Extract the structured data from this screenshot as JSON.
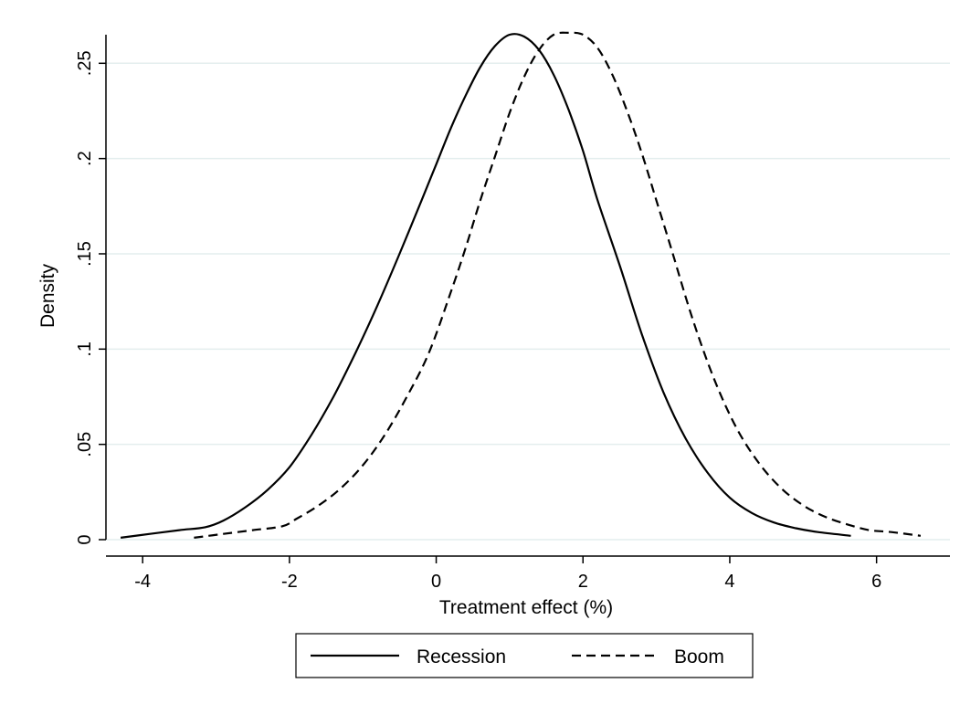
{
  "chart_data": {
    "type": "line",
    "xlabel": "Treatment effect (%)",
    "ylabel": "Density",
    "xlim": [
      -4.5,
      7.0
    ],
    "ylim": [
      0,
      0.265
    ],
    "x_ticks": [
      -4,
      -2,
      0,
      2,
      4,
      6
    ],
    "x_tick_labels": [
      "-4",
      "-2",
      "0",
      "2",
      "4",
      "6"
    ],
    "y_ticks": [
      0,
      0.05,
      0.1,
      0.15,
      0.2,
      0.25
    ],
    "y_tick_labels": [
      "0",
      ".05",
      ".1",
      ".15",
      ".2",
      ".25"
    ],
    "grid": true,
    "legend_position": "bottom",
    "series": [
      {
        "name": "Recession",
        "style": "solid",
        "x": [
          -4.3,
          -3.9,
          -3.5,
          -3.15,
          -2.9,
          -2.6,
          -2.3,
          -2.0,
          -1.7,
          -1.4,
          -1.1,
          -0.8,
          -0.5,
          -0.2,
          0.0,
          0.2,
          0.4,
          0.6,
          0.8,
          1.0,
          1.2,
          1.4,
          1.6,
          1.8,
          2.0,
          2.2,
          2.5,
          2.8,
          3.1,
          3.4,
          3.7,
          4.0,
          4.3,
          4.6,
          4.9,
          5.2,
          5.65
        ],
        "y": [
          0.001,
          0.003,
          0.005,
          0.0065,
          0.01,
          0.017,
          0.026,
          0.038,
          0.055,
          0.075,
          0.098,
          0.123,
          0.15,
          0.178,
          0.197,
          0.216,
          0.233,
          0.248,
          0.259,
          0.265,
          0.264,
          0.257,
          0.244,
          0.226,
          0.204,
          0.178,
          0.144,
          0.108,
          0.077,
          0.053,
          0.035,
          0.022,
          0.014,
          0.009,
          0.006,
          0.004,
          0.002
        ]
      },
      {
        "name": "Boom",
        "style": "dashed",
        "x": [
          -3.3,
          -2.9,
          -2.5,
          -2.1,
          -1.9,
          -1.6,
          -1.3,
          -1.0,
          -0.7,
          -0.4,
          -0.1,
          0.2,
          0.4,
          0.6,
          0.8,
          1.0,
          1.2,
          1.4,
          1.6,
          1.8,
          2.0,
          2.2,
          2.4,
          2.6,
          2.8,
          3.0,
          3.2,
          3.5,
          3.8,
          4.1,
          4.4,
          4.7,
          5.0,
          5.3,
          5.6,
          5.9,
          6.2,
          6.6
        ],
        "y": [
          0.001,
          0.003,
          0.005,
          0.007,
          0.011,
          0.018,
          0.027,
          0.039,
          0.055,
          0.075,
          0.098,
          0.13,
          0.153,
          0.178,
          0.201,
          0.224,
          0.243,
          0.257,
          0.265,
          0.266,
          0.265,
          0.258,
          0.244,
          0.225,
          0.203,
          0.178,
          0.153,
          0.115,
          0.083,
          0.058,
          0.04,
          0.027,
          0.018,
          0.012,
          0.008,
          0.005,
          0.004,
          0.002
        ]
      }
    ]
  }
}
